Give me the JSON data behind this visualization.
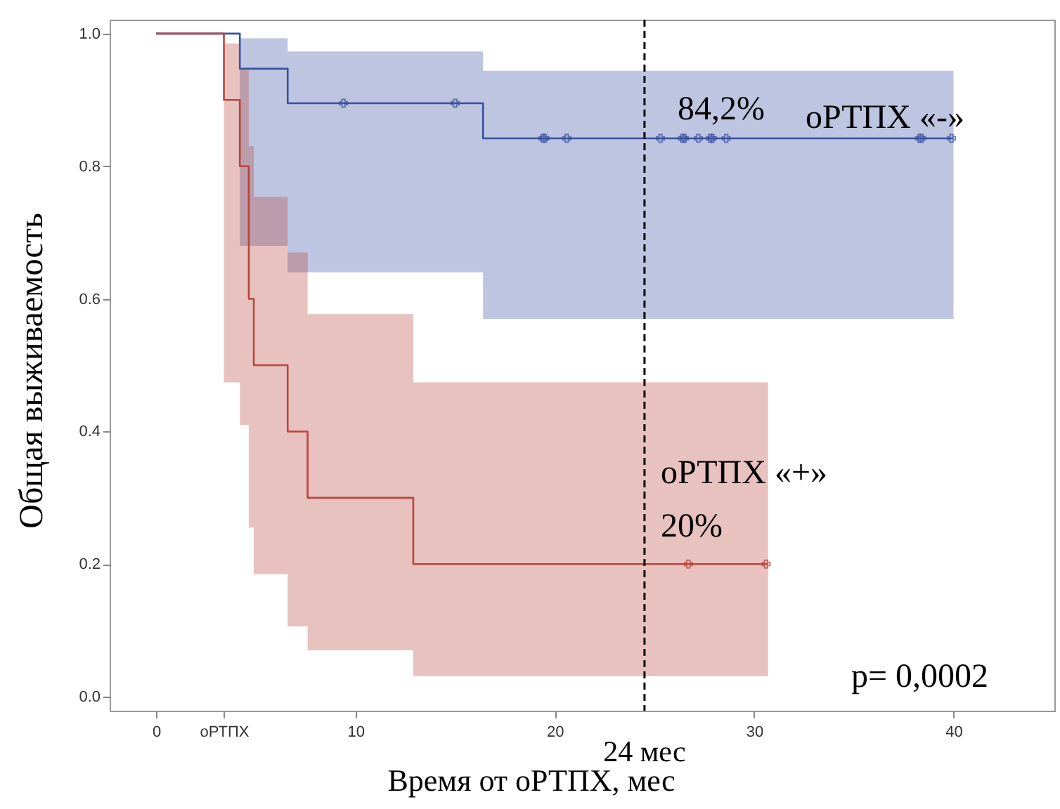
{
  "chart_data": {
    "type": "step",
    "xlabel": "Время от оРТПХ, мес",
    "ylabel": "Общая выживаемость",
    "xlim": [
      -2.33,
      45.06
    ],
    "ylim": [
      -0.021,
      1.021
    ],
    "xticks": [
      0,
      {
        "value": 3.4,
        "label": "оРТПХ"
      },
      10,
      20,
      30,
      40
    ],
    "yticks": [
      {
        "value": 0,
        "label": "0.0"
      },
      {
        "value": 0.2,
        "label": "0.2"
      },
      {
        "value": 0.4,
        "label": "0.4"
      },
      {
        "value": 0.6,
        "label": "0.6"
      },
      {
        "value": 0.8,
        "label": "0.8"
      },
      {
        "value": 1,
        "label": "1.0"
      }
    ],
    "grid": false,
    "series": [
      {
        "color": "#3a4fa0",
        "x": [
          0,
          4.2,
          6.6,
          16.4,
          40
        ],
        "values": [
          1,
          0.947,
          0.895,
          0.842,
          0.842
        ],
        "lower": [
          null,
          0.68,
          0.64,
          0.57,
          0.57
        ],
        "upper": [
          null,
          0.993,
          0.973,
          0.944,
          0.944
        ]
      },
      {
        "color": "#b8463c",
        "x": [
          0,
          3.4,
          4.2,
          4.65,
          4.9,
          6.6,
          7.6,
          12.9,
          30.7
        ],
        "values": [
          1,
          0.9,
          0.8,
          0.6,
          0.5,
          0.4,
          0.3,
          0.2,
          0.2
        ],
        "lower": [
          null,
          0.474,
          0.41,
          0.255,
          0.185,
          0.106,
          0.07,
          0.031,
          0.031
        ],
        "upper": [
          null,
          0.985,
          0.947,
          0.83,
          0.754,
          0.67,
          0.577,
          0.474,
          0.474
        ]
      },
      {
        "type": "scatter",
        "marker": "cross",
        "color": "#3a4fa0",
        "x": [
          9.4,
          15.0,
          19.4,
          19.5,
          20.6,
          25.3,
          26.4,
          26.5,
          27.2,
          27.8,
          27.9,
          28.6,
          38.3,
          38.4,
          39.9
        ],
        "values": [
          0.895,
          0.895,
          0.842,
          0.842,
          0.842,
          0.842,
          0.842,
          0.842,
          0.842,
          0.842,
          0.842,
          0.842,
          0.842,
          0.842,
          0.842
        ]
      },
      {
        "type": "scatter",
        "marker": "cross",
        "color": "#b8463c",
        "x": [
          26.7,
          30.6
        ],
        "values": [
          0.2,
          0.2
        ]
      }
    ],
    "ref_lines": [
      {
        "axis": "x",
        "value": 24.5,
        "label": "24 мес",
        "color": "#000000",
        "line_style": "dashed"
      }
    ],
    "annotations": [
      "84,2%",
      "оРТПХ «-»",
      "оРТПХ «+»",
      "20%",
      "p= 0,0002"
    ]
  }
}
